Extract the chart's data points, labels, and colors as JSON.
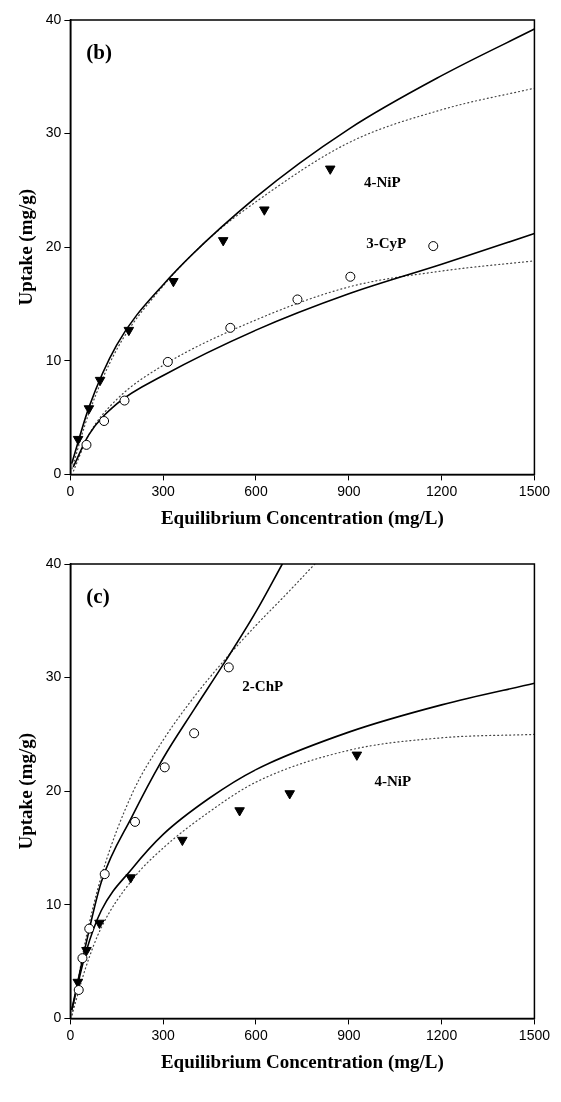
{
  "chart_data": [
    {
      "type": "scatter",
      "xlabel": "Equilibrium Concentration (mg/L)",
      "ylabel": "Uptake (mg/g)",
      "xlim": [
        0,
        1500
      ],
      "xticks": [
        0,
        300,
        600,
        900,
        1200,
        1500
      ],
      "ylim": [
        0,
        40
      ],
      "yticks": [
        0,
        10,
        20,
        30,
        40
      ],
      "grid": false,
      "legend": false,
      "annotations": [
        "(b)"
      ],
      "series": [
        {
          "name": "4-NiP",
          "color": "#000000",
          "marker": "triangle",
          "x": [
            25,
            60,
            96,
            189,
            333,
            494,
            627,
            840
          ],
          "values": [
            3.1,
            5.8,
            8.3,
            12.7,
            17.0,
            20.6,
            23.3,
            26.9
          ]
        },
        {
          "name": "3-CyP",
          "color": "#000000",
          "marker": "circle",
          "x": [
            52,
            109,
            175,
            315,
            517,
            734,
            905,
            1173
          ],
          "values": [
            2.6,
            4.7,
            6.5,
            9.9,
            12.9,
            15.4,
            17.4,
            20.1
          ]
        },
        {
          "type": "line",
          "color": "#000000",
          "marker": "none",
          "line_style": "solid",
          "x": [
            5,
            60,
            150,
            300,
            600,
            900,
            1200,
            1500
          ],
          "values": [
            1.0,
            5.9,
            11.4,
            16.7,
            24.4,
            30.4,
            35.1,
            39.2
          ]
        },
        {
          "type": "line",
          "color": "#444444",
          "marker": "none",
          "line_style": "dotted",
          "x": [
            5,
            60,
            150,
            300,
            450,
            600,
            900,
            1200,
            1500
          ],
          "values": [
            0.5,
            5.4,
            11.0,
            16.6,
            20.8,
            24.0,
            29.2,
            32.1,
            34.0
          ]
        },
        {
          "type": "line",
          "color": "#000000",
          "marker": "none",
          "line_style": "solid",
          "x": [
            10,
            60,
            150,
            300,
            600,
            900,
            1200,
            1500
          ],
          "values": [
            0.7,
            3.5,
            6.2,
            8.7,
            12.7,
            15.9,
            18.5,
            21.2
          ]
        },
        {
          "type": "line",
          "color": "#444444",
          "marker": "none",
          "line_style": "dotted",
          "x": [
            10,
            60,
            150,
            300,
            600,
            900,
            1200,
            1500
          ],
          "values": [
            0.3,
            3.5,
            6.6,
            9.6,
            13.6,
            16.5,
            17.9,
            18.8
          ]
        }
      ]
    },
    {
      "type": "scatter",
      "xlabel": "Equilibrium Concentration (mg/L)",
      "ylabel": "Uptake (mg/g)",
      "xlim": [
        0,
        1500
      ],
      "xticks": [
        0,
        300,
        600,
        900,
        1200,
        1500
      ],
      "ylim": [
        0,
        40
      ],
      "yticks": [
        0,
        10,
        20,
        30,
        40
      ],
      "grid": false,
      "legend": false,
      "annotations": [
        "(c)"
      ],
      "series": [
        {
          "name": "2-ChP",
          "color": "#000000",
          "marker": "circle",
          "x": [
            27,
            39,
            61,
            111,
            209,
            305,
            400,
            512
          ],
          "values": [
            2.5,
            5.3,
            7.9,
            12.7,
            17.3,
            22.1,
            25.1,
            30.9
          ]
        },
        {
          "name": "4-NiP",
          "color": "#000000",
          "marker": "triangle",
          "x": [
            24,
            52,
            94,
            195,
            362,
            547,
            709,
            926
          ],
          "values": [
            3.2,
            6.0,
            8.4,
            12.4,
            15.7,
            18.3,
            19.8,
            23.2
          ]
        },
        {
          "type": "line",
          "color": "#000000",
          "marker": "none",
          "line_style": "solid",
          "x": [
            5,
            50,
            100,
            200,
            300,
            400,
            500,
            600,
            685
          ],
          "values": [
            0.8,
            6.5,
            12.0,
            17.8,
            22.9,
            27.2,
            31.4,
            35.8,
            40
          ]
        },
        {
          "type": "line",
          "color": "#444444",
          "marker": "none",
          "line_style": "dotted",
          "x": [
            5,
            50,
            100,
            200,
            300,
            400,
            500,
            600,
            700,
            790
          ],
          "values": [
            0.3,
            7.0,
            12.5,
            19.8,
            24.5,
            28.3,
            31.6,
            34.6,
            37.4,
            40
          ]
        },
        {
          "type": "line",
          "color": "#000000",
          "marker": "none",
          "line_style": "solid",
          "x": [
            5,
            50,
            100,
            200,
            300,
            450,
            600,
            900,
            1200,
            1500
          ],
          "values": [
            0.8,
            5.8,
            9.5,
            13.2,
            16.2,
            19.4,
            21.9,
            25.2,
            27.6,
            29.5
          ]
        },
        {
          "type": "line",
          "color": "#444444",
          "marker": "none",
          "line_style": "dotted",
          "x": [
            5,
            50,
            100,
            200,
            300,
            450,
            600,
            900,
            1200,
            1500
          ],
          "values": [
            0.3,
            4.5,
            8.0,
            12.2,
            15.0,
            18.2,
            20.8,
            23.6,
            24.7,
            25.0
          ]
        }
      ]
    }
  ]
}
